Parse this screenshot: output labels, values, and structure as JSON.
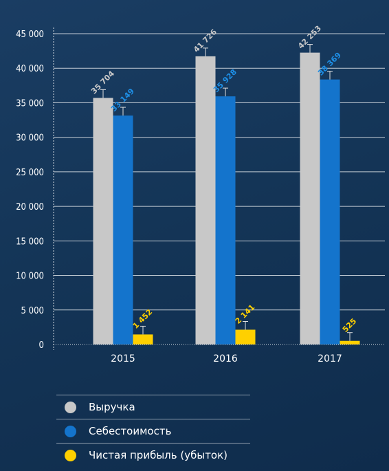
{
  "chart_data": {
    "type": "bar",
    "categories": [
      "2015",
      "2016",
      "2017"
    ],
    "ylim": [
      0,
      45000
    ],
    "y_ticks": [
      "0",
      "5 000",
      "10 000",
      "15 000",
      "20 000",
      "25 000",
      "30 000",
      "35 000",
      "40 000",
      "45 000"
    ],
    "y_tick_values": [
      0,
      5000,
      10000,
      15000,
      20000,
      25000,
      30000,
      35000,
      40000,
      45000
    ],
    "grid": true,
    "legend_position": "bottom",
    "series": [
      {
        "name": "Выручка",
        "color": "#c8c8c8",
        "label_color": "#c8c8c8",
        "values": [
          35704,
          41726,
          42253
        ],
        "labels": [
          "35 704",
          "41 726",
          "42 253"
        ]
      },
      {
        "name": "Себестоимость",
        "color": "#1474cc",
        "label_color": "#1e8fe6",
        "values": [
          33149,
          35928,
          38369
        ],
        "labels": [
          "33 149",
          "35 928",
          "38 369"
        ]
      },
      {
        "name": "Чистая прибыль (убыток)",
        "color": "#ffd000",
        "label_color": "#ffd000",
        "values": [
          1452,
          2141,
          525
        ],
        "labels": [
          "1 452",
          "2 141",
          "525"
        ]
      }
    ]
  }
}
